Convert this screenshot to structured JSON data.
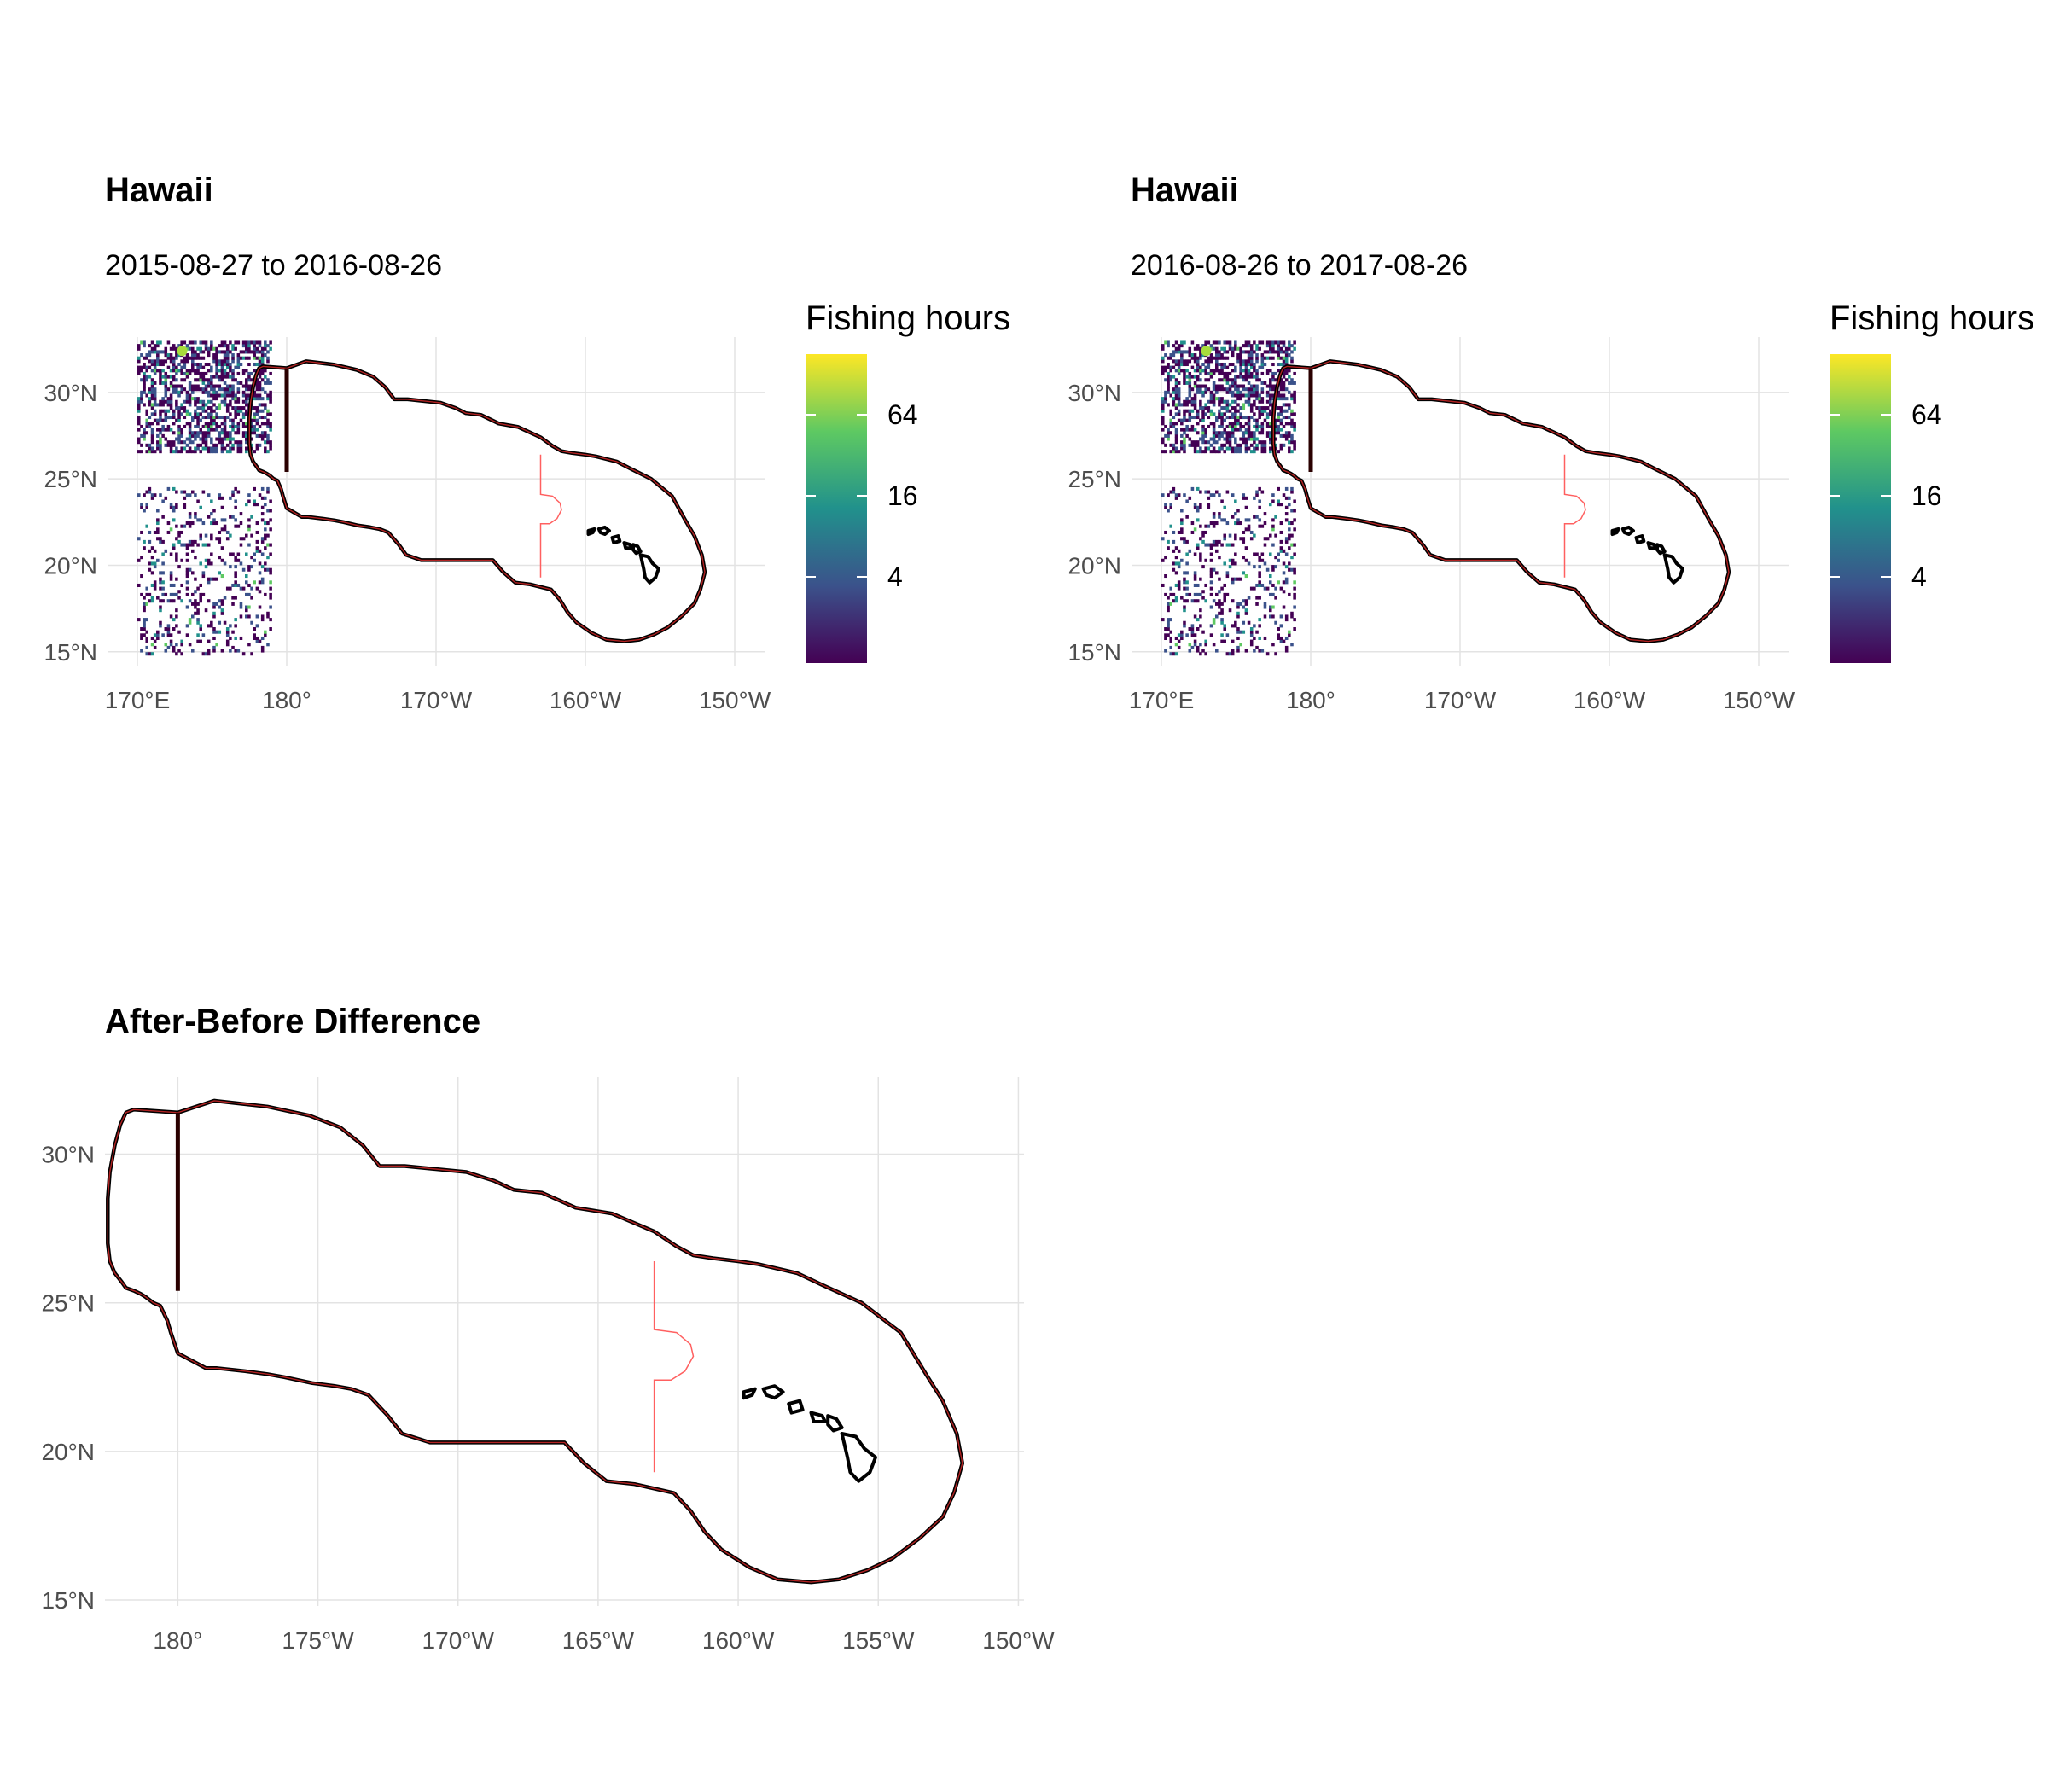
{
  "panels": [
    {
      "id": "before",
      "title": "Hawaii",
      "subtitle": "2015-08-27 to 2016-08-26",
      "x_ticks": [
        "170°E",
        "180°",
        "170°W",
        "160°W",
        "150°W"
      ],
      "y_ticks": [
        "30°N",
        "25°N",
        "20°N",
        "15°N"
      ],
      "legend": {
        "title": "Fishing hours",
        "ticks": [
          "64",
          "16",
          "4"
        ],
        "scale": "log2"
      }
    },
    {
      "id": "after",
      "title": "Hawaii",
      "subtitle": "2016-08-26 to 2017-08-26",
      "x_ticks": [
        "170°E",
        "180°",
        "170°W",
        "160°W",
        "150°W"
      ],
      "y_ticks": [
        "30°N",
        "25°N",
        "20°N",
        "15°N"
      ],
      "legend": {
        "title": "Fishing hours",
        "ticks": [
          "64",
          "16",
          "4"
        ],
        "scale": "log2"
      }
    },
    {
      "id": "difference",
      "title": "After-Before Difference",
      "x_ticks": [
        "180°",
        "175°W",
        "170°W",
        "165°W",
        "160°W",
        "155°W",
        "150°W"
      ],
      "y_ticks": [
        "30°N",
        "25°N",
        "20°N",
        "15°N"
      ]
    }
  ],
  "colors": {
    "viridis": [
      "#440154",
      "#3b528b",
      "#21918c",
      "#5ec962",
      "#fde725"
    ],
    "eez_outline": "#000000",
    "eez_inner": "#b22222",
    "boundary_line": "#ff6060",
    "gridline": "#e3e3e3"
  }
}
